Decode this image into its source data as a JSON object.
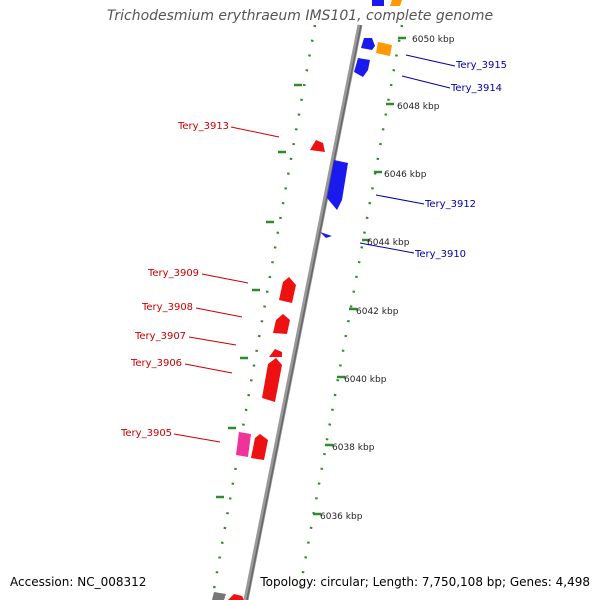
{
  "title": "Trichodesmium erythraeum IMS101, complete genome",
  "footer": {
    "accession": "Accession: NC_008312",
    "summary": "Topology: circular; Length: 7,750,108 bp; Genes: 4,498"
  },
  "colors": {
    "backbone": "#888888",
    "tick": "#2e8b2e",
    "forward_gene": "#1a1aee",
    "reverse_gene": "#ee1111",
    "orange_gene": "#ff9900",
    "pink_gene": "#ee3399",
    "forward_label": "#0000aa",
    "reverse_label": "#cc0000"
  },
  "ruler": {
    "labels": [
      "6050 kbp",
      "6048 kbp",
      "6046 kbp",
      "6044 kbp",
      "6042 kbp",
      "6040 kbp",
      "6038 kbp",
      "6036 kbp"
    ]
  },
  "genes": {
    "forward": [
      {
        "label": "Tery_3915"
      },
      {
        "label": "Tery_3914"
      },
      {
        "label": "Tery_3912"
      },
      {
        "label": "Tery_3910"
      }
    ],
    "reverse": [
      {
        "label": "Tery_3913"
      },
      {
        "label": "Tery_3909"
      },
      {
        "label": "Tery_3908"
      },
      {
        "label": "Tery_3907"
      },
      {
        "label": "Tery_3906"
      },
      {
        "label": "Tery_3905"
      }
    ]
  }
}
